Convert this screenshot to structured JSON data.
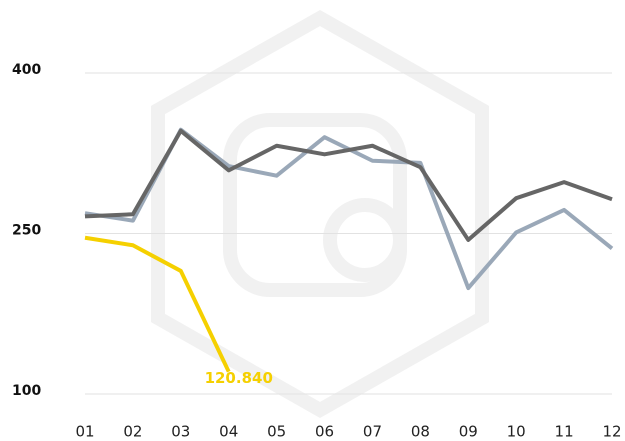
{
  "chart_data": {
    "type": "line",
    "categories": [
      "01",
      "02",
      "03",
      "04",
      "05",
      "06",
      "07",
      "08",
      "09",
      "10",
      "11",
      "12"
    ],
    "series": [
      {
        "color": "#9aa8b8",
        "values": [
          269,
          262,
          347,
          313,
          304,
          340,
          318,
          316,
          199,
          251,
          272,
          236
        ]
      },
      {
        "color": "#666666",
        "values": [
          266,
          268,
          346,
          309,
          332,
          324,
          332,
          312,
          244,
          283,
          298,
          282
        ]
      },
      {
        "color": "#f5d000",
        "values": [
          246,
          239,
          215,
          120.84,
          null,
          null,
          null,
          null,
          null,
          null,
          null,
          null
        ],
        "value_labels": [
          null,
          null,
          null,
          "120.840",
          null,
          null,
          null,
          null,
          null,
          null,
          null,
          null
        ]
      }
    ],
    "ylim": [
      100,
      400
    ],
    "yticks": [
      100,
      250,
      400
    ],
    "grid": true
  }
}
